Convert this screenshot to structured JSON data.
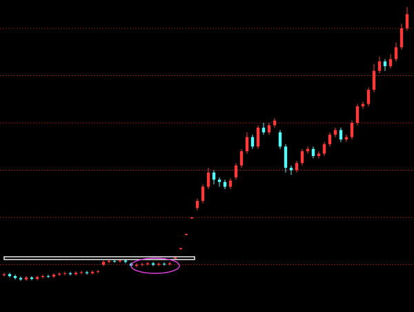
{
  "chart_data": {
    "type": "candlestick",
    "ylim": [
      0,
      66
    ],
    "yticks": [
      10,
      20,
      30,
      40,
      50,
      60
    ],
    "grid": true,
    "grid_color": "#a02020",
    "up_color": "#ff3a3a",
    "down_color": "#54fcfc",
    "open": [
      7.8,
      8.0,
      7.6,
      7.2,
      6.9,
      7.3,
      7.0,
      7.4,
      7.6,
      7.5,
      7.9,
      8.1,
      8.2,
      8.0,
      8.3,
      8.4,
      8.2,
      8.5,
      10.0,
      10.6,
      10.8,
      10.7,
      10.9,
      10.2,
      9.8,
      10.0,
      10.1,
      10.3,
      10.0,
      10.2,
      10.1,
      11.3,
      13.3,
      16.3,
      19.8,
      22.0,
      23.5,
      26.5,
      29.5,
      28.0,
      27.5,
      26.5,
      28.5,
      31.0,
      34.0,
      37.0,
      35.0,
      39.0,
      38.0,
      39.5,
      38.0,
      35.0,
      30.5,
      30.0,
      31.5,
      34.0,
      34.5,
      33.0,
      33.5,
      35.5,
      37.5,
      38.5,
      36.5,
      37.0,
      40.0,
      43.5,
      44.0,
      47.0,
      51.0,
      53.0,
      52.0,
      53.5,
      56.0,
      60.0
    ],
    "high": [
      8.3,
      8.3,
      7.9,
      7.5,
      7.6,
      7.6,
      7.7,
      7.9,
      7.9,
      8.2,
      8.4,
      8.5,
      8.5,
      8.6,
      8.7,
      8.7,
      8.8,
      8.9,
      10.9,
      11.1,
      11.1,
      11.2,
      11.2,
      10.5,
      10.3,
      10.4,
      10.6,
      10.6,
      10.5,
      10.5,
      10.6,
      11.6,
      13.6,
      16.6,
      20.1,
      24.0,
      27.0,
      30.5,
      30.0,
      28.5,
      28.0,
      28.3,
      31.5,
      34.5,
      38.0,
      37.5,
      39.5,
      40.0,
      40.0,
      41.0,
      38.5,
      35.5,
      31.0,
      32.0,
      34.5,
      35.0,
      35.0,
      34.0,
      36.0,
      38.0,
      39.0,
      39.0,
      37.5,
      40.5,
      44.0,
      44.5,
      47.5,
      52.5,
      54.0,
      53.5,
      54.5,
      57.0,
      61.0,
      64.5
    ],
    "low": [
      7.5,
      7.3,
      6.9,
      6.6,
      6.6,
      6.7,
      6.7,
      7.1,
      7.2,
      7.2,
      7.6,
      7.8,
      7.7,
      7.7,
      8.0,
      7.9,
      7.9,
      8.2,
      9.7,
      10.3,
      10.4,
      10.4,
      10.3,
      9.5,
      9.5,
      9.7,
      9.8,
      9.7,
      9.7,
      9.8,
      9.8,
      11.2,
      13.2,
      16.2,
      19.7,
      21.5,
      23.0,
      26.0,
      27.0,
      26.5,
      26.0,
      26.0,
      28.0,
      30.5,
      33.5,
      34.5,
      34.5,
      37.5,
      37.5,
      39.0,
      34.5,
      29.5,
      29.0,
      29.5,
      31.0,
      33.5,
      32.5,
      32.5,
      33.0,
      35.0,
      37.0,
      36.0,
      36.0,
      36.5,
      39.5,
      43.0,
      43.5,
      46.5,
      50.5,
      51.0,
      51.5,
      53.0,
      55.5,
      59.5
    ],
    "close": [
      8.0,
      7.6,
      7.2,
      6.9,
      7.3,
      7.0,
      7.4,
      7.6,
      7.5,
      7.9,
      8.1,
      8.2,
      8.0,
      8.3,
      8.4,
      8.2,
      8.5,
      8.6,
      10.6,
      10.8,
      10.7,
      10.9,
      10.6,
      9.8,
      10.0,
      10.1,
      10.3,
      10.0,
      10.2,
      10.1,
      10.3,
      11.5,
      13.5,
      16.5,
      20.0,
      23.5,
      26.5,
      29.5,
      28.0,
      27.5,
      26.5,
      27.8,
      31.0,
      34.0,
      37.0,
      35.0,
      39.0,
      38.0,
      39.5,
      40.5,
      35.0,
      30.5,
      30.0,
      31.5,
      34.0,
      34.5,
      33.0,
      33.5,
      35.5,
      37.5,
      38.5,
      36.5,
      37.0,
      40.0,
      43.5,
      44.0,
      47.0,
      51.0,
      53.0,
      52.0,
      53.5,
      56.0,
      60.0,
      63.0
    ]
  }
}
